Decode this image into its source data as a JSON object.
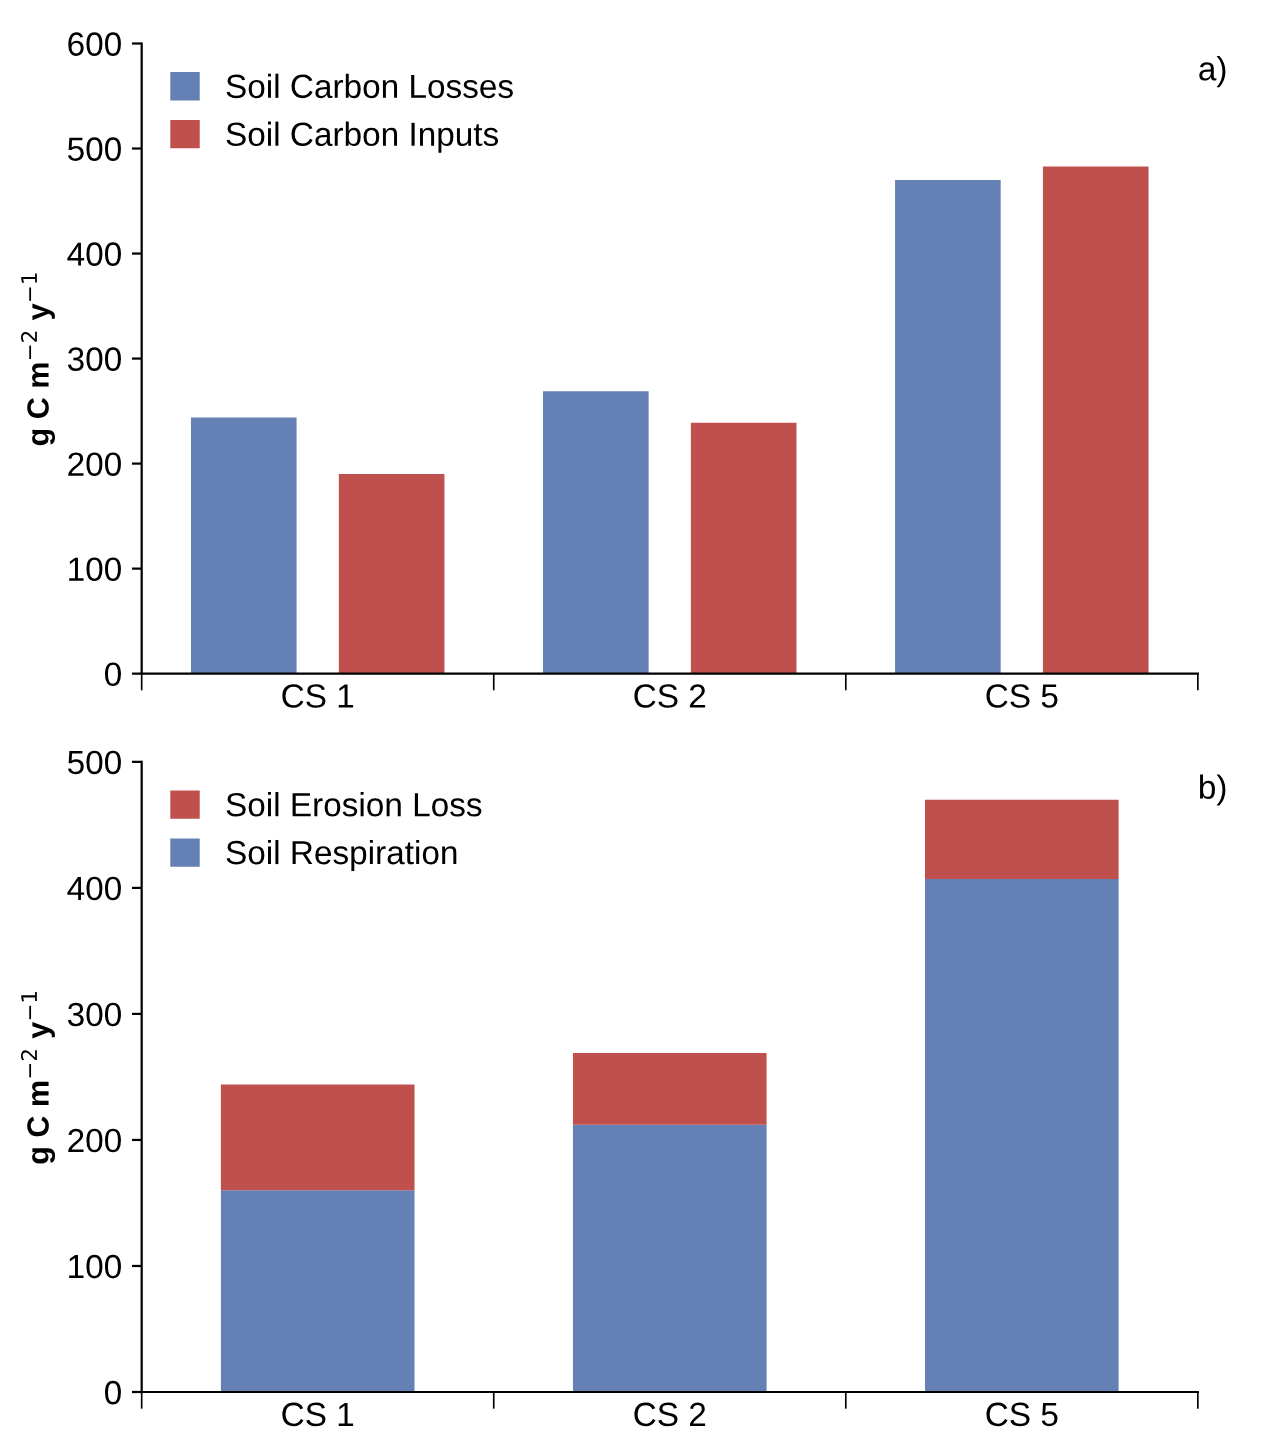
{
  "chart_data": [
    {
      "type": "bar",
      "categories": [
        "CS 1",
        "CS 2",
        "CS 5"
      ],
      "ylabel": "g C m$^{−2}$ y$^{−1}$",
      "ylim": [
        0,
        600
      ],
      "yticks": [
        0,
        100,
        200,
        300,
        400,
        500,
        600
      ],
      "grid": false,
      "legend": "top left",
      "annotations": [
        "a)"
      ],
      "series": [
        {
          "name": "Soil Carbon Losses",
          "color": "#6480b4",
          "values": [
            244,
            269,
            470
          ]
        },
        {
          "name": "Soil Carbon Inputs",
          "color": "#c0504d",
          "values": [
            190,
            239,
            483
          ]
        }
      ]
    },
    {
      "type": "bar",
      "stacked": true,
      "categories": [
        "CS 1",
        "CS 2",
        "CS 5"
      ],
      "ylabel": "g C m$^{−2}$ y$^{−1}$",
      "ylim": [
        0,
        500
      ],
      "yticks": [
        0,
        100,
        200,
        300,
        400,
        500
      ],
      "grid": false,
      "legend": "top left",
      "annotations": [
        "b)"
      ],
      "series": [
        {
          "name": "Soil Respiration",
          "color": "#6480b4",
          "values": [
            160,
            212,
            407
          ]
        },
        {
          "name": "Soil Erosion Loss",
          "color": "#c0504d",
          "values": [
            84,
            57,
            63
          ]
        }
      ]
    }
  ]
}
